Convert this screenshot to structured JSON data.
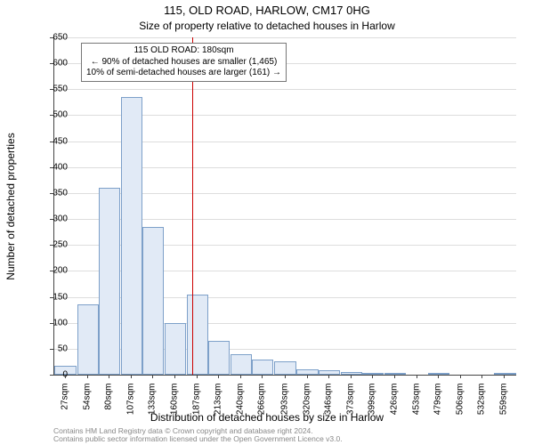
{
  "titles": {
    "line1": "115, OLD ROAD, HARLOW, CM17 0HG",
    "line2": "Size of property relative to detached houses in Harlow"
  },
  "axes": {
    "xlabel": "Distribution of detached houses by size in Harlow",
    "ylabel": "Number of detached properties"
  },
  "annotation": {
    "lines": [
      "115 OLD ROAD: 180sqm",
      "← 90% of detached houses are smaller (1,465)",
      "10% of semi-detached houses are larger (161) →"
    ]
  },
  "marker": {
    "x_value": 180,
    "color": "#cc0000"
  },
  "chart": {
    "type": "histogram",
    "x_min": 13.5,
    "x_max": 572.5,
    "y_min": 0,
    "y_max": 650,
    "y_ticks": [
      0,
      50,
      100,
      150,
      200,
      250,
      300,
      350,
      400,
      450,
      500,
      550,
      600,
      650
    ],
    "x_ticks": [
      {
        "v": 27,
        "label": "27sqm"
      },
      {
        "v": 54,
        "label": "54sqm"
      },
      {
        "v": 80,
        "label": "80sqm"
      },
      {
        "v": 107,
        "label": "107sqm"
      },
      {
        "v": 133,
        "label": "133sqm"
      },
      {
        "v": 160,
        "label": "160sqm"
      },
      {
        "v": 187,
        "label": "187sqm"
      },
      {
        "v": 213,
        "label": "213sqm"
      },
      {
        "v": 240,
        "label": "240sqm"
      },
      {
        "v": 266,
        "label": "266sqm"
      },
      {
        "v": 293,
        "label": "293sqm"
      },
      {
        "v": 320,
        "label": "320sqm"
      },
      {
        "v": 346,
        "label": "346sqm"
      },
      {
        "v": 373,
        "label": "373sqm"
      },
      {
        "v": 399,
        "label": "399sqm"
      },
      {
        "v": 426,
        "label": "426sqm"
      },
      {
        "v": 453,
        "label": "453sqm"
      },
      {
        "v": 479,
        "label": "479sqm"
      },
      {
        "v": 506,
        "label": "506sqm"
      },
      {
        "v": 532,
        "label": "532sqm"
      },
      {
        "v": 559,
        "label": "559sqm"
      }
    ],
    "bar_half_width": 13,
    "bars": [
      {
        "x": 27,
        "y": 18
      },
      {
        "x": 54,
        "y": 135
      },
      {
        "x": 80,
        "y": 360
      },
      {
        "x": 107,
        "y": 535
      },
      {
        "x": 133,
        "y": 285
      },
      {
        "x": 160,
        "y": 100
      },
      {
        "x": 187,
        "y": 155
      },
      {
        "x": 213,
        "y": 65
      },
      {
        "x": 240,
        "y": 40
      },
      {
        "x": 266,
        "y": 30
      },
      {
        "x": 293,
        "y": 25
      },
      {
        "x": 320,
        "y": 10
      },
      {
        "x": 346,
        "y": 8
      },
      {
        "x": 373,
        "y": 5
      },
      {
        "x": 399,
        "y": 4
      },
      {
        "x": 426,
        "y": 3
      },
      {
        "x": 453,
        "y": 0
      },
      {
        "x": 479,
        "y": 2
      },
      {
        "x": 506,
        "y": 0
      },
      {
        "x": 532,
        "y": 0
      },
      {
        "x": 559,
        "y": 2
      }
    ],
    "bar_fill": "#e1eaf6",
    "bar_border": "#7da0c9",
    "grid_color": "#dddddd",
    "background": "#ffffff"
  },
  "footer": {
    "line1": "Contains HM Land Registry data © Crown copyright and database right 2024.",
    "line2": "Contains public sector information licensed under the Open Government Licence v3.0."
  }
}
